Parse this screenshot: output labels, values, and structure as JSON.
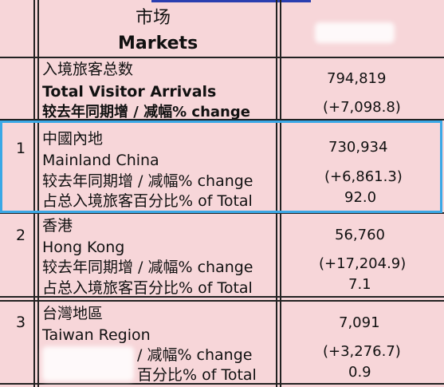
{
  "header": {
    "markets_zh": "市场",
    "markets_en": "Markets"
  },
  "total": {
    "label_zh": "入境旅客总数",
    "label_en": "Total Visitor Arrivals",
    "change_label": "较去年同期增 / 减幅% change",
    "value": "794,819",
    "change": "(+7,098.8)"
  },
  "rows": [
    {
      "rank": "1",
      "name_zh": "中國內地",
      "name_en": "Mainland China",
      "change_label": "较去年同期增 / 减幅% change",
      "share_label": "占总入境旅客百分比% of Total",
      "value": "730,934",
      "change": "(+6,861.3)",
      "share": "92.0"
    },
    {
      "rank": "2",
      "name_zh": "香港",
      "name_en": "Hong Kong",
      "change_label": "较去年同期增 / 减幅% change",
      "share_label": "占总入境旅客百分比% of Total",
      "value": "56,760",
      "change": "(+17,204.9)",
      "share": "7.1"
    },
    {
      "rank": "3",
      "name_zh": "台灣地區",
      "name_en": "Taiwan Region",
      "change_label_visible": "/ 减幅% change",
      "share_label_visible": "百分比% of Total",
      "value": "7,091",
      "change": "(+3,276.7)",
      "share": "0.9"
    }
  ],
  "colors": {
    "background": "#f7d6d9",
    "highlight_border": "#3aa8e6",
    "grid": "#222222"
  }
}
